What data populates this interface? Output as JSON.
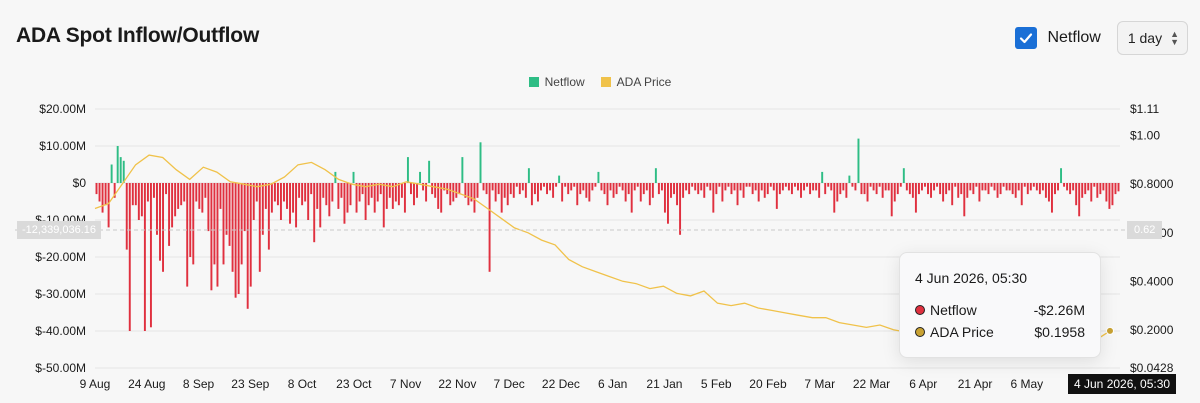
{
  "header": {
    "title": "ADA Spot Inflow/Outflow",
    "checkbox_label": "Netflow",
    "interval": "1 day"
  },
  "colors": {
    "positive": "#2ebd85",
    "negative": "#e0303f",
    "price": "#f0c24a",
    "tooltip_netflow": "#e0303f",
    "tooltip_price": "#c9a232"
  },
  "icons": {
    "checkbox": "check-icon",
    "select": "chevron-updown-icon"
  },
  "tooltip": {
    "date": "4 Jun 2026, 05:30",
    "rows": [
      {
        "label": "Netflow",
        "value": "-$2.26M"
      },
      {
        "label": "ADA Price",
        "value": "$0.1958"
      }
    ]
  },
  "crosshair": {
    "x_label": "4 Jun 2026, 05:30",
    "y_left": "-12,339,036.16",
    "y_right": "0.62"
  },
  "chart_data": {
    "type": "bar",
    "legend": [
      "Netflow",
      "ADA Price"
    ],
    "legend_position": "top-center",
    "grid": true,
    "x_tick_labels": [
      "9 Aug",
      "24 Aug",
      "8 Sep",
      "23 Sep",
      "8 Oct",
      "23 Oct",
      "7 Nov",
      "22 Nov",
      "7 Dec",
      "22 Dec",
      "6 Jan",
      "21 Jan",
      "5 Feb",
      "20 Feb",
      "7 Mar",
      "22 Mar",
      "6 Apr",
      "21 Apr",
      "6 May",
      "21"
    ],
    "y_left_ticks": [
      "$20.00M",
      "$10.00M",
      "$0",
      "$-10.00M",
      "$-20.00M",
      "$-30.00M",
      "$-40.00M",
      "$-50.00M"
    ],
    "y_left_values": [
      20,
      10,
      0,
      -10,
      -20,
      -30,
      -40,
      -50
    ],
    "y_left_range": [
      -50,
      20
    ],
    "y_right_ticks": [
      "$1.11",
      "$1.00",
      "$0.8000",
      "$0.6000",
      "$0.4000",
      "$0.2000",
      "$0.0428"
    ],
    "y_right_values": [
      1.11,
      1.0,
      0.8,
      0.6,
      0.4,
      0.2,
      0.0428
    ],
    "y_right_range": [
      0.0428,
      1.11
    ],
    "series": [
      {
        "name": "Netflow",
        "unit": "M USD",
        "values": [
          -3,
          -5,
          -8,
          -6,
          -12,
          5,
          -4,
          10,
          7,
          6,
          -18,
          -40,
          -6,
          -6,
          -10,
          -9,
          -40,
          -5,
          -39,
          -4,
          -14,
          -21,
          -24,
          -3,
          -17,
          -12,
          -9,
          -7,
          -6,
          -5,
          -28,
          -20,
          -22,
          -5,
          -7,
          -8,
          -4,
          -13,
          -29,
          -22,
          -28,
          -7,
          -22,
          -14,
          -17,
          -24,
          -31,
          -30,
          -22,
          -13,
          -34,
          -28,
          -10,
          -5,
          -24,
          -14,
          -7,
          -18,
          -8,
          -5,
          -6,
          -10,
          -5,
          -7,
          -11,
          -8,
          -12,
          -4,
          -6,
          -5,
          -10,
          -3,
          -16,
          -7,
          -12,
          -4,
          -6,
          -9,
          -5,
          3,
          -7,
          -4,
          -11,
          -8,
          -6,
          3,
          -8,
          -5,
          -3,
          -10,
          -6,
          -4,
          -8,
          -5,
          -3,
          -12,
          -7,
          -4,
          -7,
          -5,
          -6,
          -4,
          -8,
          7,
          -3,
          -6,
          -4,
          3,
          -2,
          -5,
          6,
          -3,
          -4,
          -7,
          -8,
          -2,
          -3,
          -6,
          -5,
          -4,
          -3,
          7,
          -4,
          -6,
          -5,
          -8,
          -4,
          11,
          -2,
          -3,
          -24,
          -2,
          -5,
          -3,
          -8,
          -4,
          -6,
          -3,
          -4,
          -1,
          -3,
          -2,
          -4,
          4,
          -6,
          -3,
          -5,
          -2,
          -1,
          -3,
          -2,
          -4,
          -1,
          2,
          -5,
          -1,
          -3,
          -2,
          -1,
          -6,
          -3,
          -2,
          -4,
          -5,
          -2,
          -1,
          3,
          -2,
          -3,
          -6,
          -2,
          -4,
          -3,
          -1,
          -2,
          -5,
          -3,
          -8,
          -2,
          -1,
          -5,
          -3,
          -2,
          -6,
          -4,
          4,
          -3,
          -2,
          -8,
          -11,
          -4,
          -3,
          -6,
          -14,
          -4,
          -2,
          -3,
          -1,
          -2,
          -3,
          -2,
          -4,
          -1,
          -2,
          -8,
          -3,
          -1,
          -5,
          -2,
          -1,
          -3,
          -2,
          -6,
          -2,
          -4,
          -1,
          -1,
          -3,
          -2,
          -5,
          -2,
          -4,
          -3,
          -1,
          -2,
          -7,
          -3,
          -2,
          -1,
          -2,
          -3,
          -1,
          -2,
          -4,
          -2,
          -1,
          -3,
          -2,
          -2,
          -4,
          3,
          -3,
          -1,
          -2,
          -8,
          -5,
          -3,
          -2,
          -4,
          2,
          -1,
          -2,
          12,
          -3,
          -3,
          -5,
          -1,
          -2,
          -3,
          -1,
          -4,
          -2,
          -2,
          -9,
          -5,
          -3,
          -1,
          4,
          -2,
          -3,
          -4,
          -8,
          -3,
          -2,
          -1,
          -3,
          -4,
          -2,
          -1,
          -3,
          -5,
          -3,
          -2,
          -6,
          -1,
          -4,
          -3,
          -9,
          -4,
          -2,
          -3,
          -1,
          -5,
          -2,
          -2,
          -3,
          -1,
          -2,
          -4,
          -3,
          -1,
          -2,
          -2,
          -3,
          -4,
          -2,
          -6,
          -1,
          -3,
          -2,
          -1,
          -2,
          -3,
          -2,
          -4,
          -5,
          -8,
          -3,
          -2,
          4,
          -1,
          -2,
          -3,
          -2,
          -6,
          -9,
          -4,
          -3,
          -2,
          -5,
          -1,
          -4,
          -3,
          -2,
          -5,
          -7,
          -6,
          -3,
          -2.26
        ],
        "color": "#e0303f"
      },
      {
        "name": "ADA Price",
        "unit": "USD",
        "values": [
          0.7,
          0.72,
          0.8,
          0.88,
          0.92,
          0.91,
          0.86,
          0.82,
          0.87,
          0.85,
          0.81,
          0.8,
          0.79,
          0.8,
          0.83,
          0.88,
          0.89,
          0.86,
          0.82,
          0.8,
          0.79,
          0.8,
          0.79,
          0.81,
          0.8,
          0.79,
          0.78,
          0.76,
          0.74,
          0.7,
          0.66,
          0.62,
          0.6,
          0.57,
          0.55,
          0.49,
          0.46,
          0.44,
          0.42,
          0.4,
          0.39,
          0.37,
          0.38,
          0.35,
          0.34,
          0.36,
          0.31,
          0.3,
          0.31,
          0.29,
          0.28,
          0.27,
          0.26,
          0.25,
          0.25,
          0.23,
          0.22,
          0.21,
          0.22,
          0.2,
          0.19,
          0.18,
          0.18,
          0.19,
          0.17,
          0.17,
          0.18,
          0.16,
          0.17,
          0.16,
          0.17,
          0.18,
          0.16,
          0.15,
          0.16,
          0.1958
        ]
      }
    ]
  }
}
